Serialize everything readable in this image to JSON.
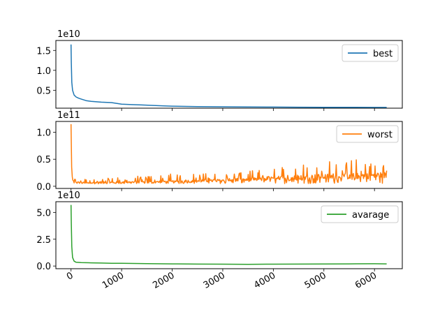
{
  "chart_data": [
    {
      "type": "line",
      "title": "",
      "xlabel": "",
      "ylabel": "",
      "offset_label": "1e10",
      "yunit_scale": 10000000000,
      "xlim": [
        -300,
        6550
      ],
      "ylim": [
        0.05,
        1.75
      ],
      "yticks": [
        0.5,
        1.0,
        1.5
      ],
      "ytick_labels": [
        "0.5",
        "1.0",
        "1.5"
      ],
      "xticks": [
        0,
        1000,
        2000,
        3000,
        4000,
        5000,
        6000
      ],
      "show_xtick_labels": false,
      "grid": false,
      "legend_position": "upper-right",
      "series": [
        {
          "name": "best",
          "color": "#1f77b4",
          "x": [
            0,
            5,
            15,
            30,
            60,
            100,
            150,
            200,
            300,
            400,
            600,
            800,
            1000,
            1200,
            1400,
            1600,
            1800,
            2000,
            2500,
            3000,
            3500,
            4000,
            4500,
            5000,
            5500,
            6000,
            6240
          ],
          "y": [
            1.65,
            1.2,
            0.7,
            0.5,
            0.38,
            0.33,
            0.3,
            0.28,
            0.24,
            0.22,
            0.2,
            0.19,
            0.15,
            0.14,
            0.13,
            0.12,
            0.11,
            0.1,
            0.09,
            0.085,
            0.08,
            0.078,
            0.075,
            0.073,
            0.072,
            0.07,
            0.07
          ]
        }
      ]
    },
    {
      "type": "line",
      "title": "",
      "xlabel": "",
      "ylabel": "",
      "offset_label": "1e11",
      "yunit_scale": 100000000000,
      "xlim": [
        -300,
        6550
      ],
      "ylim": [
        -0.04,
        1.2
      ],
      "yticks": [
        0.0,
        0.5,
        1.0
      ],
      "ytick_labels": [
        "0.0",
        "0.5",
        "1.0"
      ],
      "xticks": [
        0,
        1000,
        2000,
        3000,
        4000,
        5000,
        6000
      ],
      "show_xtick_labels": false,
      "grid": false,
      "legend_position": "upper-right",
      "series": [
        {
          "name": "worst",
          "color": "#ff7f0e",
          "x": [
            0,
            5,
            15,
            30,
            60,
            100,
            200,
            300,
            400,
            600,
            800,
            1000,
            1200,
            1500,
            1800,
            2000,
            2300,
            2600,
            3000,
            3300,
            3600,
            4000,
            4300,
            4600,
            4800,
            5000,
            5300,
            5600,
            5900,
            6100,
            6240
          ],
          "y": [
            1.15,
            0.6,
            0.25,
            0.12,
            0.09,
            0.08,
            0.07,
            0.07,
            0.07,
            0.08,
            0.08,
            0.08,
            0.09,
            0.09,
            0.1,
            0.1,
            0.11,
            0.12,
            0.13,
            0.14,
            0.15,
            0.17,
            0.18,
            0.19,
            0.2,
            0.21,
            0.22,
            0.22,
            0.23,
            0.24,
            0.24
          ],
          "upper": [
            1.15,
            0.6,
            0.3,
            0.18,
            0.15,
            0.14,
            0.14,
            0.14,
            0.15,
            0.16,
            0.17,
            0.18,
            0.18,
            0.2,
            0.22,
            0.23,
            0.26,
            0.23,
            0.27,
            0.28,
            0.3,
            0.33,
            0.4,
            0.47,
            0.5,
            0.49,
            0.52,
            0.5,
            0.51,
            0.46,
            0.35
          ],
          "lower": [
            1.15,
            0.55,
            0.2,
            0.09,
            0.06,
            0.05,
            0.05,
            0.05,
            0.05,
            0.05,
            0.05,
            0.05,
            0.05,
            0.05,
            0.05,
            0.05,
            0.05,
            0.05,
            0.05,
            0.05,
            0.05,
            0.05,
            0.05,
            0.05,
            0.05,
            0.05,
            0.05,
            0.05,
            0.05,
            0.05,
            0.05
          ]
        }
      ]
    },
    {
      "type": "line",
      "title": "",
      "xlabel": "",
      "ylabel": "",
      "offset_label": "1e10",
      "yunit_scale": 10000000000,
      "xlim": [
        -300,
        6550
      ],
      "ylim": [
        -0.25,
        6.0
      ],
      "yticks": [
        0.0,
        2.5,
        5.0
      ],
      "ytick_labels": [
        "0.0",
        "2.5",
        "5.0"
      ],
      "xticks": [
        0,
        1000,
        2000,
        3000,
        4000,
        5000,
        6000
      ],
      "xtick_labels": [
        "0",
        "1000",
        "2000",
        "3000",
        "4000",
        "5000",
        "6000"
      ],
      "show_xtick_labels": true,
      "grid": false,
      "legend_position": "upper-right",
      "series": [
        {
          "name": "avarage",
          "color": "#2ca02c",
          "x": [
            0,
            5,
            15,
            30,
            60,
            100,
            200,
            400,
            600,
            800,
            1000,
            1500,
            2000,
            2500,
            3000,
            3500,
            4000,
            4500,
            5000,
            5500,
            6000,
            6240
          ],
          "y": [
            5.7,
            4.0,
            1.8,
            0.8,
            0.45,
            0.35,
            0.32,
            0.3,
            0.28,
            0.26,
            0.25,
            0.22,
            0.2,
            0.18,
            0.17,
            0.16,
            0.17,
            0.18,
            0.19,
            0.2,
            0.21,
            0.2
          ]
        }
      ]
    }
  ]
}
